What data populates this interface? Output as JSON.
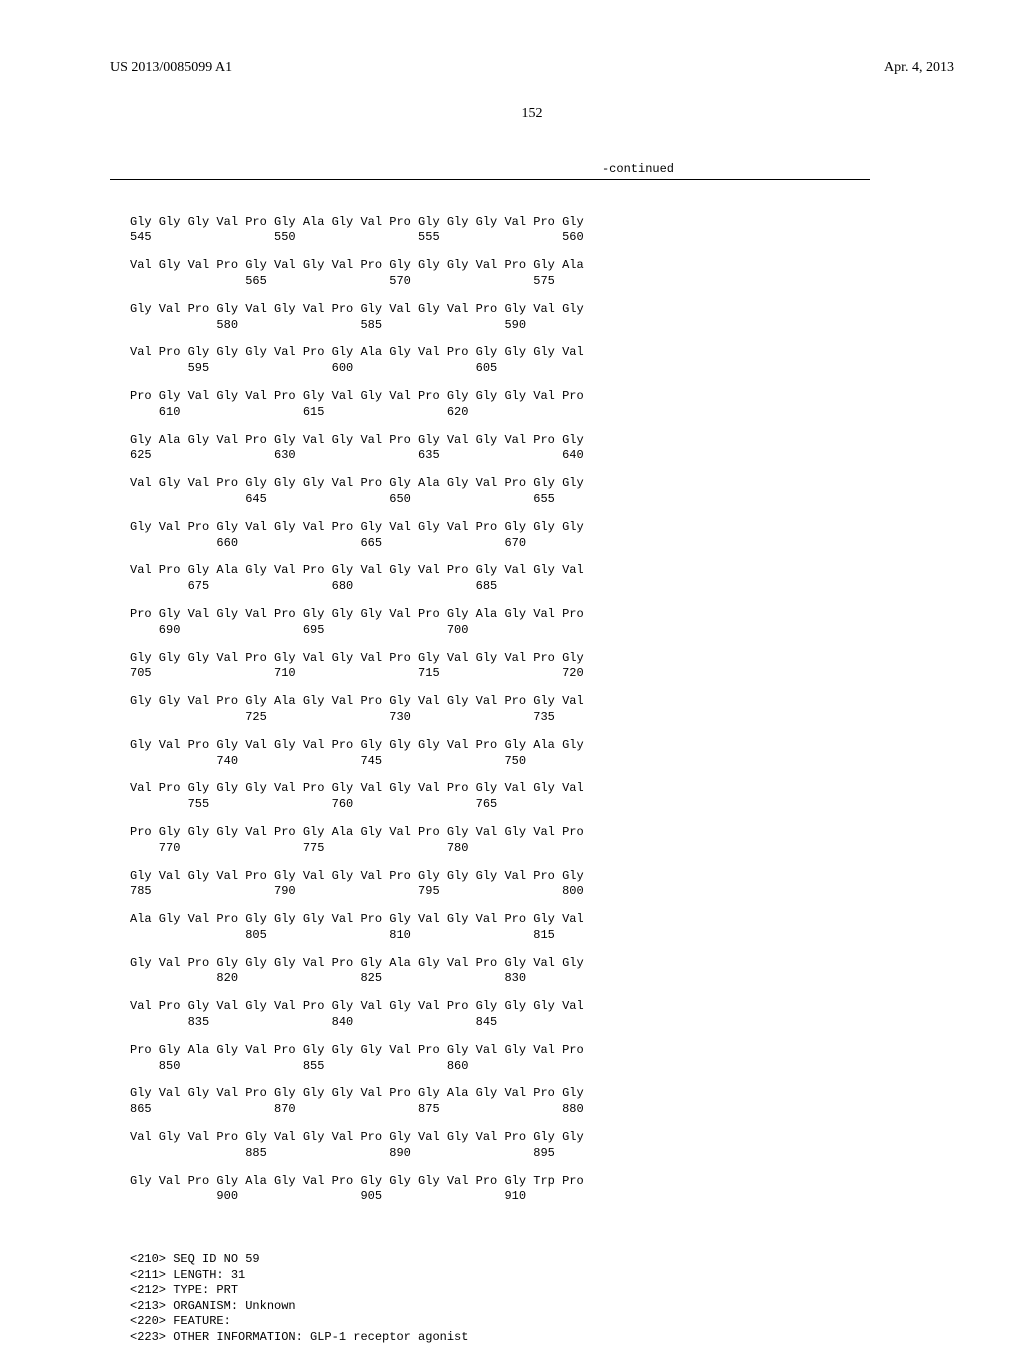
{
  "header": {
    "publication_number": "US 2013/0085099 A1",
    "date": "Apr. 4, 2013"
  },
  "page_number": "152",
  "continued_label": "-continued",
  "sequence_rows": [
    {
      "aa": "Gly Gly Gly Val Pro Gly Ala Gly Val Pro Gly Gly Gly Val Pro Gly",
      "num": "545                 550                 555                 560"
    },
    {
      "aa": "Val Gly Val Pro Gly Val Gly Val Pro Gly Gly Gly Val Pro Gly Ala",
      "num": "                565                 570                 575"
    },
    {
      "aa": "Gly Val Pro Gly Val Gly Val Pro Gly Val Gly Val Pro Gly Val Gly",
      "num": "            580                 585                 590"
    },
    {
      "aa": "Val Pro Gly Gly Gly Val Pro Gly Ala Gly Val Pro Gly Gly Gly Val",
      "num": "        595                 600                 605"
    },
    {
      "aa": "Pro Gly Val Gly Val Pro Gly Val Gly Val Pro Gly Gly Gly Val Pro",
      "num": "    610                 615                 620"
    },
    {
      "aa": "Gly Ala Gly Val Pro Gly Val Gly Val Pro Gly Val Gly Val Pro Gly",
      "num": "625                 630                 635                 640"
    },
    {
      "aa": "Val Gly Val Pro Gly Gly Gly Val Pro Gly Ala Gly Val Pro Gly Gly",
      "num": "                645                 650                 655"
    },
    {
      "aa": "Gly Val Pro Gly Val Gly Val Pro Gly Val Gly Val Pro Gly Gly Gly",
      "num": "            660                 665                 670"
    },
    {
      "aa": "Val Pro Gly Ala Gly Val Pro Gly Val Gly Val Pro Gly Val Gly Val",
      "num": "        675                 680                 685"
    },
    {
      "aa": "Pro Gly Val Gly Val Pro Gly Gly Gly Val Pro Gly Ala Gly Val Pro",
      "num": "    690                 695                 700"
    },
    {
      "aa": "Gly Gly Gly Val Pro Gly Val Gly Val Pro Gly Val Gly Val Pro Gly",
      "num": "705                 710                 715                 720"
    },
    {
      "aa": "Gly Gly Val Pro Gly Ala Gly Val Pro Gly Val Gly Val Pro Gly Val",
      "num": "                725                 730                 735"
    },
    {
      "aa": "Gly Val Pro Gly Val Gly Val Pro Gly Gly Gly Val Pro Gly Ala Gly",
      "num": "            740                 745                 750"
    },
    {
      "aa": "Val Pro Gly Gly Gly Val Pro Gly Val Gly Val Pro Gly Val Gly Val",
      "num": "        755                 760                 765"
    },
    {
      "aa": "Pro Gly Gly Gly Val Pro Gly Ala Gly Val Pro Gly Val Gly Val Pro",
      "num": "    770                 775                 780"
    },
    {
      "aa": "Gly Val Gly Val Pro Gly Val Gly Val Pro Gly Gly Gly Val Pro Gly",
      "num": "785                 790                 795                 800"
    },
    {
      "aa": "Ala Gly Val Pro Gly Gly Gly Val Pro Gly Val Gly Val Pro Gly Val",
      "num": "                805                 810                 815"
    },
    {
      "aa": "Gly Val Pro Gly Gly Gly Val Pro Gly Ala Gly Val Pro Gly Val Gly",
      "num": "            820                 825                 830"
    },
    {
      "aa": "Val Pro Gly Val Gly Val Pro Gly Val Gly Val Pro Gly Gly Gly Val",
      "num": "        835                 840                 845"
    },
    {
      "aa": "Pro Gly Ala Gly Val Pro Gly Gly Gly Val Pro Gly Val Gly Val Pro",
      "num": "    850                 855                 860"
    },
    {
      "aa": "Gly Val Gly Val Pro Gly Gly Gly Val Pro Gly Ala Gly Val Pro Gly",
      "num": "865                 870                 875                 880"
    },
    {
      "aa": "Val Gly Val Pro Gly Val Gly Val Pro Gly Val Gly Val Pro Gly Gly",
      "num": "                885                 890                 895"
    },
    {
      "aa": "Gly Val Pro Gly Ala Gly Val Pro Gly Gly Gly Val Pro Gly Trp Pro",
      "num": "            900                 905                 910"
    }
  ],
  "metadata": {
    "line1": "<210> SEQ ID NO 59",
    "line2": "<211> LENGTH: 31",
    "line3": "<212> TYPE: PRT",
    "line4": "<213> ORGANISM: Unknown",
    "line5": "<220> FEATURE:",
    "line6": "<223> OTHER INFORMATION: GLP-1 receptor agonist"
  }
}
